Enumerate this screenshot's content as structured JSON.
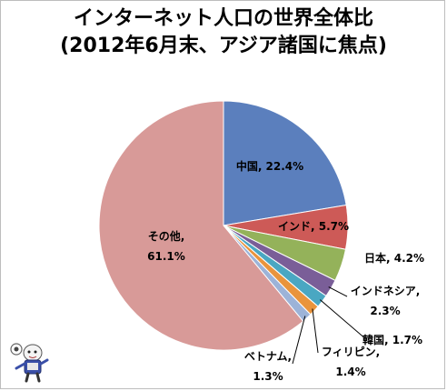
{
  "chart_data": {
    "type": "pie",
    "title_line1": "インターネット人口の世界全体比",
    "title_line2": "(2012年6月末、アジア諸国に焦点)",
    "slices": [
      {
        "name": "中国",
        "value": 22.4,
        "color": "#5b7fbd",
        "label": "中国, 22.4%"
      },
      {
        "name": "インド",
        "value": 5.7,
        "color": "#cd5a57",
        "label": "インド, 5.7%"
      },
      {
        "name": "日本",
        "value": 4.2,
        "color": "#94b25a",
        "label": "日本, 4.2%"
      },
      {
        "name": "インドネシア",
        "value": 2.3,
        "color": "#7a5e98",
        "label_line1": "インドネシア,",
        "label_line2": "2.3%"
      },
      {
        "name": "韓国",
        "value": 1.7,
        "color": "#4aa7c2",
        "label": "韓国, 1.7%"
      },
      {
        "name": "フィリピン",
        "value": 1.4,
        "color": "#e9943c",
        "label_line1": "フィリピン,",
        "label_line2": "1.4%"
      },
      {
        "name": "ベトナム",
        "value": 1.3,
        "color": "#9cb3d8",
        "label_line1": "ベトナム,",
        "label_line2": "1.3%"
      },
      {
        "name": "その他",
        "value": 61.1,
        "color": "#d89a98",
        "label_line1": "その他,",
        "label_line2": "61.1%"
      }
    ]
  }
}
